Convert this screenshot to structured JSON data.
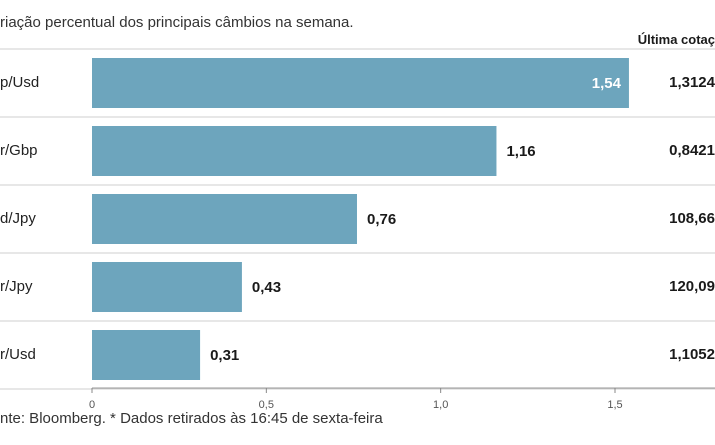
{
  "chart_data": {
    "type": "bar",
    "orientation": "horizontal",
    "subtitle": "riação percentual dos principais câmbios na semana.",
    "categories": [
      "p/Usd",
      "r/Gbp",
      "d/Jpy",
      "r/Jpy",
      "r/Usd"
    ],
    "values": [
      1.54,
      1.16,
      0.76,
      0.43,
      0.31
    ],
    "value_labels": [
      "1,54",
      "1,16",
      "0,76",
      "0,43",
      "0,31"
    ],
    "xlim": [
      0,
      1.8
    ],
    "xticks": [
      0,
      0.5,
      1.0,
      1.5
    ],
    "xtick_labels": [
      "0",
      "0,5",
      "1,0",
      "1,5"
    ],
    "grid": false,
    "bar_color": "#6da5bd",
    "last_quote_header": "Última cotaç",
    "last_quotes": [
      "1,3124",
      "0,8421",
      "108,66",
      "120,09",
      "1,1052"
    ],
    "source": "nte: Bloomberg.  * Dados retirados às 16:45 de sexta-feira"
  }
}
